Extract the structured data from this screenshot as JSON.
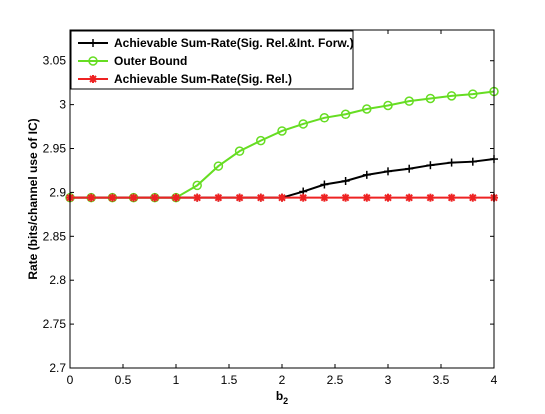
{
  "chart_data": {
    "type": "line",
    "xlabel_base": "b",
    "xlabel_sub": "2",
    "ylabel": "Rate (bits/channel use of IC)",
    "xlim": [
      0,
      4
    ],
    "ylim": [
      2.7,
      3.085
    ],
    "xticks": [
      "0",
      "0.5",
      "1",
      "1.5",
      "2",
      "2.5",
      "3",
      "3.5",
      "4"
    ],
    "yticks": [
      "2.7",
      "2.75",
      "2.8",
      "2.85",
      "2.9",
      "2.95",
      "3",
      "3.05"
    ],
    "grid": false,
    "legend_position": "top-left",
    "x": [
      0,
      0.2,
      0.4,
      0.6,
      0.8,
      1.0,
      1.2,
      1.4,
      1.6,
      1.8,
      2.0,
      2.2,
      2.4,
      2.6,
      2.8,
      3.0,
      3.2,
      3.4,
      3.6,
      3.8,
      4.0
    ],
    "series": [
      {
        "name": "Achievable Sum-Rate(Sig. Rel.&Int. Forw.)",
        "color": "#000000",
        "marker": "plus",
        "values": [
          2.894,
          2.894,
          2.894,
          2.894,
          2.894,
          2.894,
          2.894,
          2.894,
          2.894,
          2.894,
          2.894,
          2.901,
          2.909,
          2.913,
          2.92,
          2.924,
          2.927,
          2.931,
          2.934,
          2.935,
          2.938
        ]
      },
      {
        "name": "Outer Bound",
        "color": "#66dd22",
        "marker": "circle",
        "values": [
          2.894,
          2.894,
          2.894,
          2.894,
          2.894,
          2.894,
          2.908,
          2.93,
          2.947,
          2.959,
          2.97,
          2.978,
          2.985,
          2.989,
          2.995,
          2.999,
          3.004,
          3.007,
          3.01,
          3.012,
          3.015
        ]
      },
      {
        "name": "Achievable Sum-Rate(Sig. Rel.)",
        "color": "#ee2222",
        "marker": "star",
        "values": [
          2.894,
          2.894,
          2.894,
          2.894,
          2.894,
          2.894,
          2.894,
          2.894,
          2.894,
          2.894,
          2.894,
          2.894,
          2.894,
          2.894,
          2.894,
          2.894,
          2.894,
          2.894,
          2.894,
          2.894,
          2.894
        ]
      }
    ]
  }
}
